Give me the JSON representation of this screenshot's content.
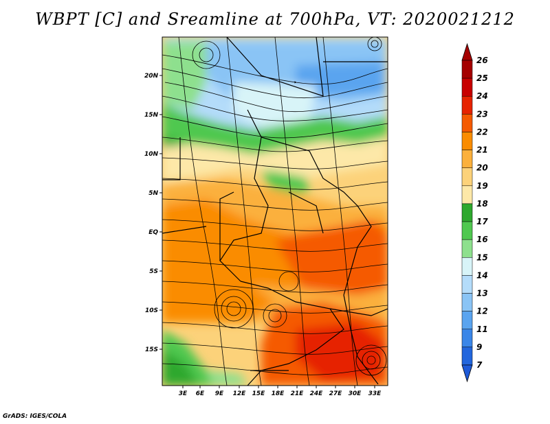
{
  "title": "WBPT [C] and Sreamline at 700hPa, VT: 2020021212",
  "credit": "GrADS: IGES/COLA",
  "map": {
    "lon_range": [
      0,
      36
    ],
    "lat_range": [
      -20,
      24.5
    ],
    "lon_ticks": [
      "3E",
      "6E",
      "9E",
      "12E",
      "15E",
      "18E",
      "21E",
      "24E",
      "27E",
      "30E",
      "33E"
    ],
    "lat_ticks": [
      "20N",
      "15N",
      "10N",
      "5N",
      "EQ",
      "5S",
      "10S",
      "15S"
    ]
  },
  "colorbar": {
    "levels": [
      "26",
      "25",
      "24",
      "23",
      "22",
      "21",
      "20",
      "19",
      "18",
      "17",
      "16",
      "15",
      "14",
      "13",
      "12",
      "11",
      "9",
      "7"
    ],
    "colors": [
      "#a50000",
      "#c80000",
      "#e62300",
      "#f55a00",
      "#fa8c00",
      "#fbb03c",
      "#fcd27a",
      "#fde8a8",
      "#2ea82e",
      "#50c850",
      "#8ee08e",
      "#d8f4f8",
      "#b4dcfa",
      "#8ac4f5",
      "#5aa4ef",
      "#3a86e8",
      "#2266dd"
    ],
    "top_color": "#a50000",
    "bottom_color": "#1e5ad8"
  }
}
